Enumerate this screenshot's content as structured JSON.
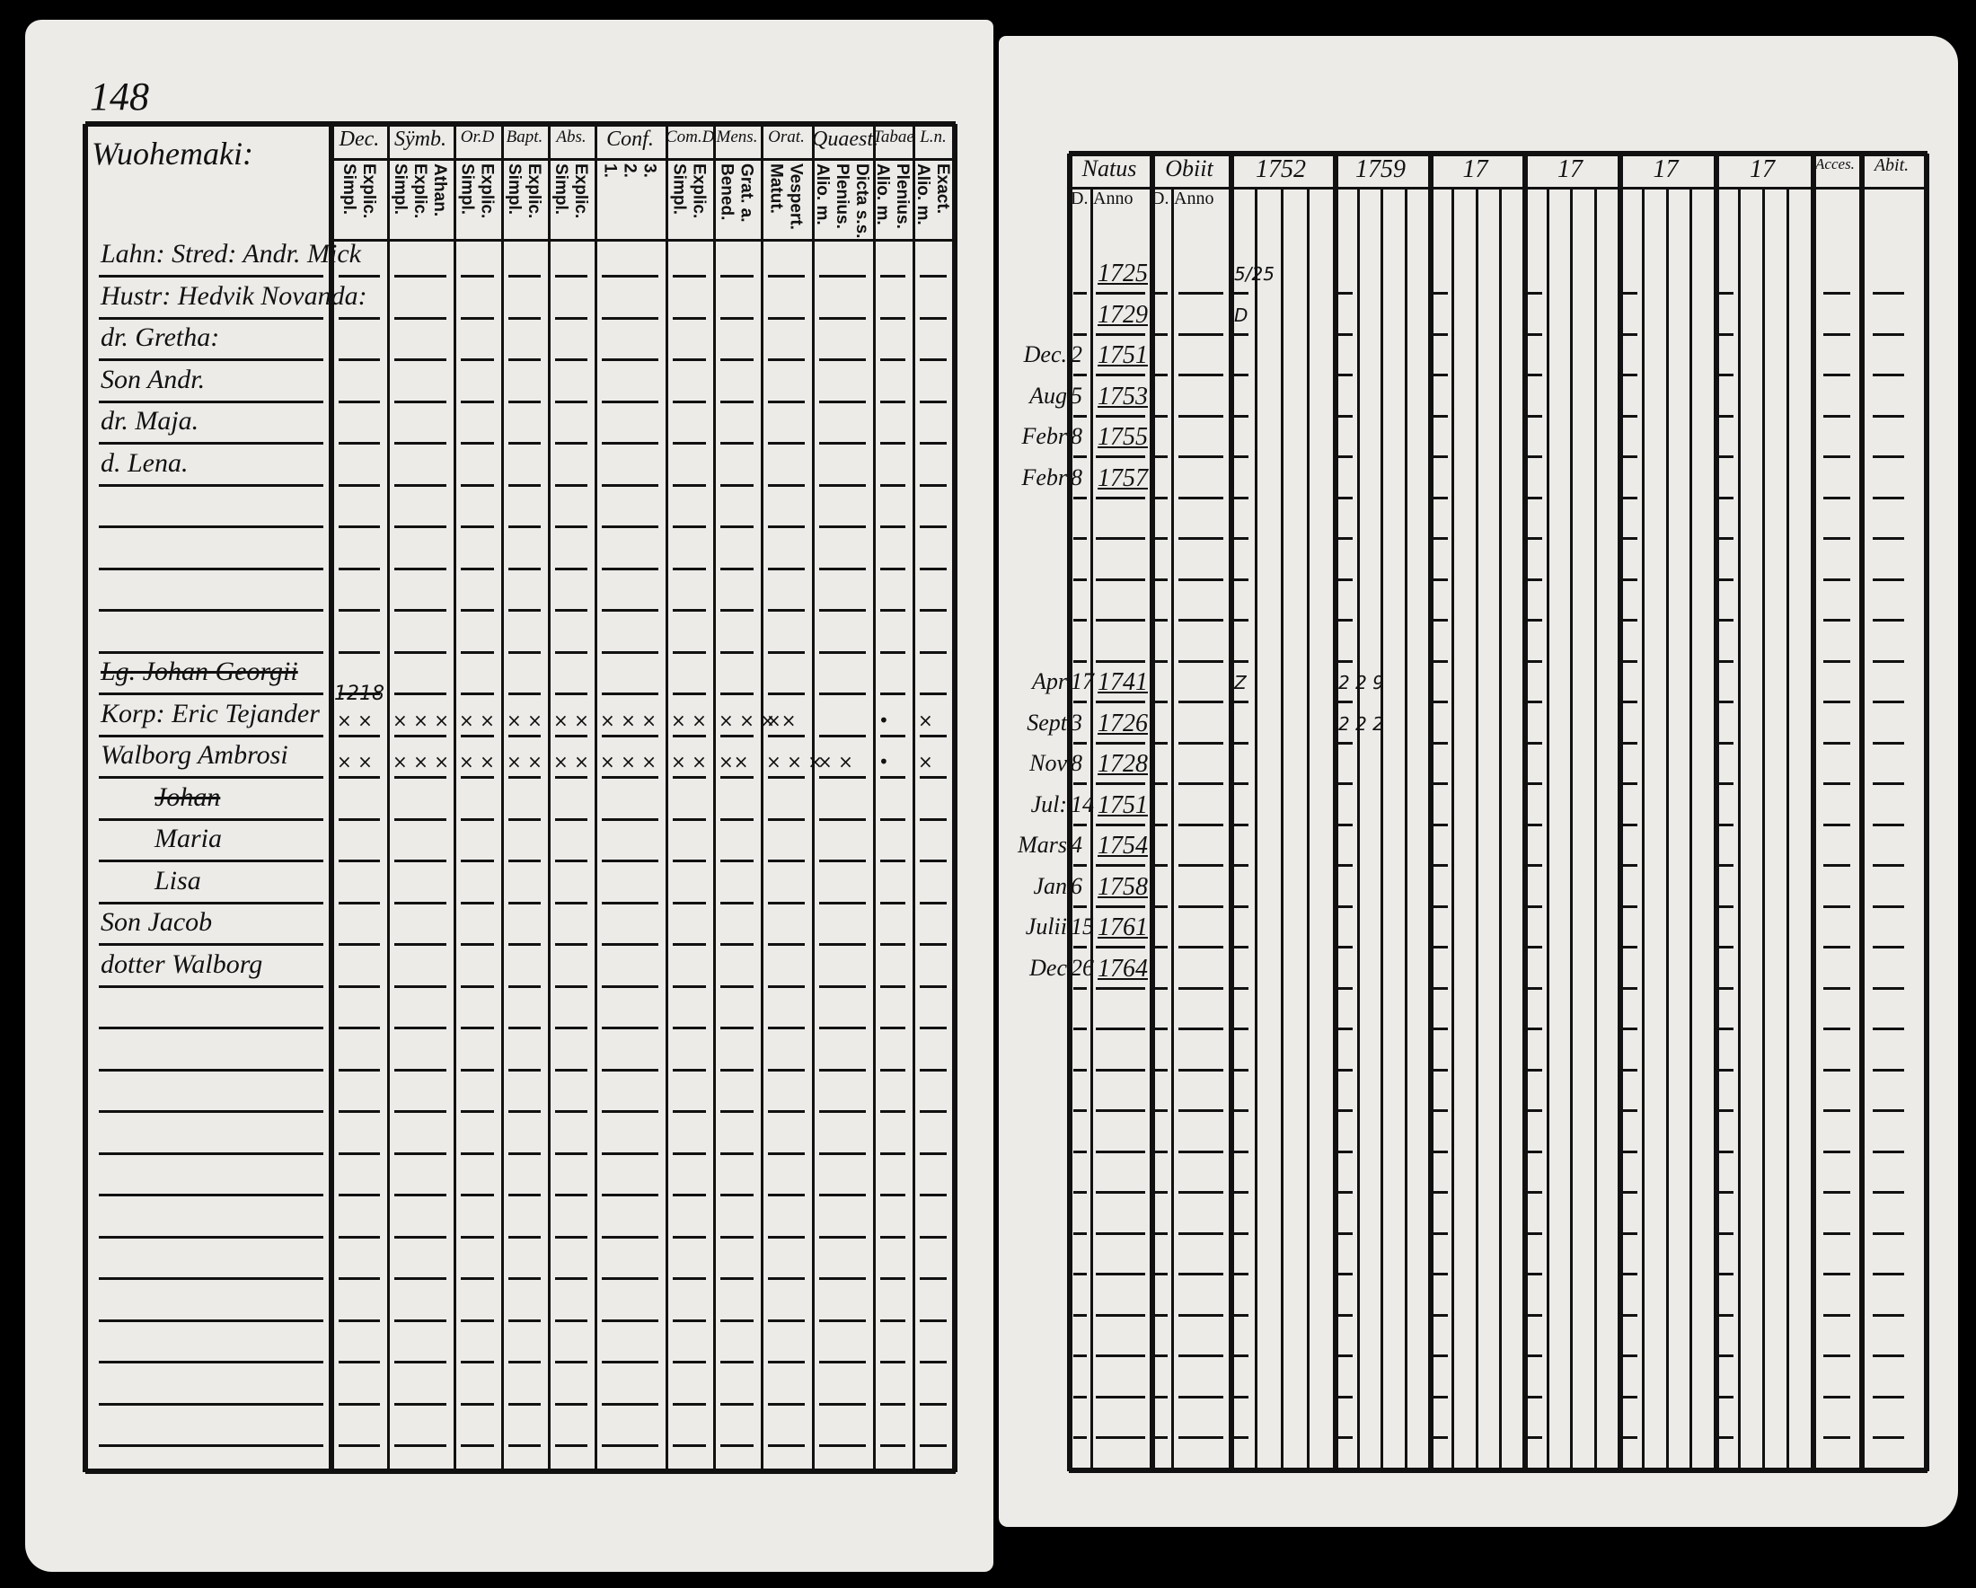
{
  "page_number": "148",
  "left": {
    "village": "Wuohemaki:",
    "columns": [
      {
        "top": "Dec.",
        "sub": [
          "Explic.",
          "Simpl."
        ]
      },
      {
        "top": "Sÿmb.",
        "sub": [
          "Athan.",
          "Explic.",
          "Simpl."
        ]
      },
      {
        "top": "Or.D",
        "sub": [
          "Explic.",
          "Simpl."
        ]
      },
      {
        "top": "Bapt.",
        "sub": [
          "Explic.",
          "Simpl."
        ]
      },
      {
        "top": "Abs.",
        "sub": [
          "Explic.",
          "Simpl."
        ]
      },
      {
        "top": "Conf.",
        "sub": [
          "3.",
          "2.",
          "1."
        ]
      },
      {
        "top": "Com.D",
        "sub": [
          "Explic.",
          "Simpl."
        ]
      },
      {
        "top": "Mens.",
        "sub": [
          "Grat. a.",
          "Bened."
        ]
      },
      {
        "top": "Orat.",
        "sub": [
          "Vespert.",
          "Matut."
        ]
      },
      {
        "top": "Quaest.",
        "sub": [
          "Dicta s.s.",
          "Plenius.",
          "Alio. m."
        ]
      },
      {
        "top": "Tabae",
        "sub": [
          "Plenius.",
          "Alio. m."
        ]
      },
      {
        "top": "L.n.",
        "sub": [
          "Exact.",
          "Alio. m."
        ]
      }
    ],
    "persons": [
      {
        "name": "Lahn: Stred: Andr. Mick",
        "struck": false
      },
      {
        "name": "Hustr: Hedvik Novanda:",
        "struck": false
      },
      {
        "name": "dr. Gretha:",
        "struck": false
      },
      {
        "name": "Son Andr.",
        "struck": false
      },
      {
        "name": "dr. Maja.",
        "struck": false
      },
      {
        "name": "d. Lena.",
        "struck": false
      },
      {
        "name": "Lg. Johan Georgii",
        "struck": true
      },
      {
        "name": "Korp: Eric Tejander",
        "struck": false,
        "note": "1218",
        "marks": [
          "× ×",
          "× × ×",
          "× ×",
          "× ×",
          "× ×",
          "× × ×",
          "× ×",
          "× × ×",
          "××",
          "",
          "•",
          "×"
        ]
      },
      {
        "name": "Walborg Ambrosi",
        "struck": false,
        "marks": [
          "× ×",
          "× × ×",
          "× ×",
          "× ×",
          "× ×",
          "× × ×",
          "× ×",
          "××",
          "× × ×",
          "× ×",
          "•",
          "×"
        ]
      },
      {
        "name": "Johan",
        "struck": true
      },
      {
        "name": "Maria",
        "struck": false
      },
      {
        "name": "Lisa",
        "struck": false
      },
      {
        "name": "Son Jacob",
        "struck": false
      },
      {
        "name": "dotter Walborg",
        "struck": false
      }
    ]
  },
  "right": {
    "natus": "Natus",
    "obiit": "Obiit",
    "day_label": "D.",
    "anno_label": "Anno",
    "years": [
      "1752",
      "1759",
      "17",
      "17",
      "17",
      "17"
    ],
    "accessit": "Acces.",
    "abiit": "Abit.",
    "births": [
      {
        "month": "",
        "day": "",
        "year": "1725",
        "marks": [
          "5/25",
          ""
        ]
      },
      {
        "month": "",
        "day": "",
        "year": "1729",
        "marks": [
          "D",
          ""
        ]
      },
      {
        "month": "Dec.",
        "day": "2",
        "year": "1751"
      },
      {
        "month": "Aug",
        "day": "5",
        "year": "1753"
      },
      {
        "month": "Febr",
        "day": "8",
        "year": "1755"
      },
      {
        "month": "Febr",
        "day": "8",
        "year": "1757"
      },
      {
        "month": "Apr",
        "day": "17",
        "year": "1741",
        "marks": [
          "Z",
          "2 2 9"
        ]
      },
      {
        "month": "Sept",
        "day": "3",
        "year": "1726",
        "marks": [
          "",
          "2 2 2"
        ]
      },
      {
        "month": "Nov",
        "day": "8",
        "year": "1728"
      },
      {
        "month": "Jul:",
        "day": "14",
        "year": "1751"
      },
      {
        "month": "Mars",
        "day": "4",
        "year": "1754"
      },
      {
        "month": "Jan",
        "day": "6",
        "year": "1758"
      },
      {
        "month": "Julii",
        "day": "15",
        "year": "1761"
      },
      {
        "month": "Dec",
        "day": "26",
        "year": "1764"
      }
    ]
  }
}
